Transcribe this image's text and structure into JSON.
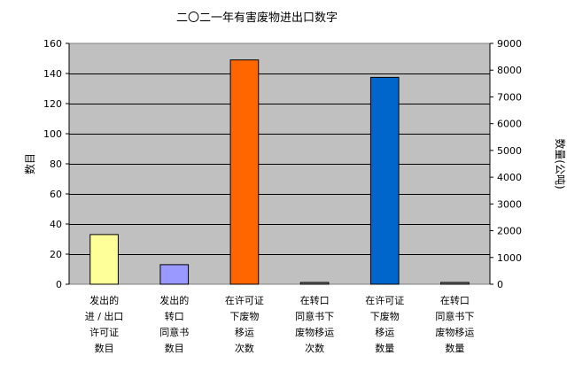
{
  "chart_data": {
    "type": "bar",
    "title": "二〇二一年有害废物进出口数字",
    "left_axis": {
      "label": "数目",
      "ylim": [
        0,
        160
      ],
      "ticks": [
        0,
        20,
        40,
        60,
        80,
        100,
        120,
        140,
        160
      ]
    },
    "right_axis": {
      "label": "数量(公吨)",
      "ylim": [
        0,
        9000
      ],
      "ticks": [
        0,
        1000,
        2000,
        3000,
        4000,
        5000,
        6000,
        7000,
        8000,
        9000
      ]
    },
    "categories": [
      [
        "发出的",
        "进 / 出口",
        "许可证",
        "数目"
      ],
      [
        "发出的",
        "转口",
        "同意书",
        "数目"
      ],
      [
        "在许可证",
        "下废物",
        "移运",
        "次数"
      ],
      [
        "在转口",
        "同意书下",
        "废物移运",
        "次数"
      ],
      [
        "在许可证",
        "下废物",
        "移运",
        "数量"
      ],
      [
        "在转口",
        "同意书下",
        "废物移运",
        "数量"
      ]
    ],
    "bars": [
      {
        "value": 33,
        "axis": "left",
        "color": "#ffff99"
      },
      {
        "value": 13,
        "axis": "left",
        "color": "#9999ff"
      },
      {
        "value": 149,
        "axis": "left",
        "color": "#ff6600"
      },
      {
        "value": 1,
        "axis": "left",
        "color": "#808080"
      },
      {
        "value": 7730,
        "axis": "right",
        "color": "#0066cc"
      },
      {
        "value": 50,
        "axis": "right",
        "color": "#808080"
      }
    ],
    "plot_background": "#c0c0c0",
    "grid": true
  }
}
